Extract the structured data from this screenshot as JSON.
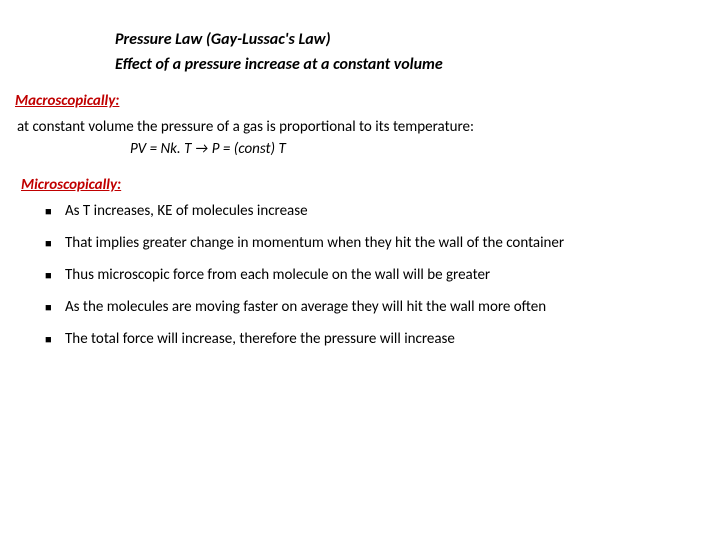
{
  "title": "Pressure Law (Gay-Lussac's Law)",
  "subtitle": "Effect of a pressure increase at a constant volume",
  "macroscopic": {
    "header": "Macroscopically:",
    "text": "at constant volume the pressure of a gas  is proportional to its temperature:",
    "equation": "PV = Nk. T   →  P = (const) T"
  },
  "microscopic": {
    "header": "Microscopically:",
    "bullets": [
      " As T increases, KE of molecules increase",
      "That implies greater change in momentum when they hit the wall of the container",
      "Thus microscopic force from each molecule on the wall will be greater",
      "As the molecules are moving faster on average they will hit the wall more often",
      "The total force will increase, therefore the pressure will increase"
    ]
  },
  "colors": {
    "header_red": "#c00000",
    "text_black": "#000000",
    "background": "#ffffff"
  },
  "typography": {
    "title_fontsize": 16,
    "body_fontsize": 15,
    "font_family": "Calibri"
  }
}
